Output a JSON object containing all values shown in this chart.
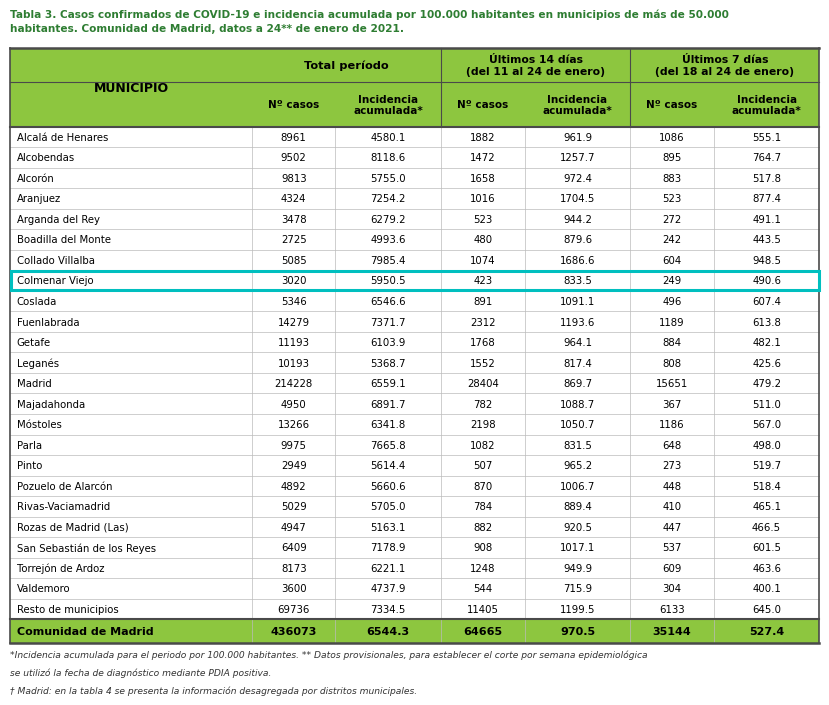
{
  "title_line1": "Tabla 3. Casos confirmados de COVID-19 e incidencia acumulada por 100.000 habitantes en municipios de más de 50.000",
  "title_line2": "habitantes. Comunidad de Madrid, datos a 24** de enero de 2021.",
  "highlight_row": "Colmenar Viejo",
  "highlight_color": "#00bfbf",
  "footer_line1": "*Incidencia acumulada para el periodo por 100.000 habitantes. ** Datos provisionales, para establecer el corte por semana epidemiológica",
  "footer_line2": "se utilizó la fecha de diagnóstico mediante PDIA positiva.",
  "footer_line3": "† Madrid: en la tabla 4 se presenta la información desagregada por distritos municipales.",
  "title_color": "#2e7d32",
  "header_color": "#8dc63f",
  "rows": [
    [
      "Alcalá de Henares",
      "8961",
      "4580.1",
      "1882",
      "961.9",
      "1086",
      "555.1"
    ],
    [
      "Alcobendas",
      "9502",
      "8118.6",
      "1472",
      "1257.7",
      "895",
      "764.7"
    ],
    [
      "Alcorón",
      "9813",
      "5755.0",
      "1658",
      "972.4",
      "883",
      "517.8"
    ],
    [
      "Aranjuez",
      "4324",
      "7254.2",
      "1016",
      "1704.5",
      "523",
      "877.4"
    ],
    [
      "Arganda del Rey",
      "3478",
      "6279.2",
      "523",
      "944.2",
      "272",
      "491.1"
    ],
    [
      "Boadilla del Monte",
      "2725",
      "4993.6",
      "480",
      "879.6",
      "242",
      "443.5"
    ],
    [
      "Collado Villalba",
      "5085",
      "7985.4",
      "1074",
      "1686.6",
      "604",
      "948.5"
    ],
    [
      "Colmenar Viejo",
      "3020",
      "5950.5",
      "423",
      "833.5",
      "249",
      "490.6"
    ],
    [
      "Coslada",
      "5346",
      "6546.6",
      "891",
      "1091.1",
      "496",
      "607.4"
    ],
    [
      "Fuenlabrada",
      "14279",
      "7371.7",
      "2312",
      "1193.6",
      "1189",
      "613.8"
    ],
    [
      "Getafe",
      "11193",
      "6103.9",
      "1768",
      "964.1",
      "884",
      "482.1"
    ],
    [
      "Leganés",
      "10193",
      "5368.7",
      "1552",
      "817.4",
      "808",
      "425.6"
    ],
    [
      "Madrid",
      "214228",
      "6559.1",
      "28404",
      "869.7",
      "15651",
      "479.2"
    ],
    [
      "Majadahonda",
      "4950",
      "6891.7",
      "782",
      "1088.7",
      "367",
      "511.0"
    ],
    [
      "Móstoles",
      "13266",
      "6341.8",
      "2198",
      "1050.7",
      "1186",
      "567.0"
    ],
    [
      "Parla",
      "9975",
      "7665.8",
      "1082",
      "831.5",
      "648",
      "498.0"
    ],
    [
      "Pinto",
      "2949",
      "5614.4",
      "507",
      "965.2",
      "273",
      "519.7"
    ],
    [
      "Pozuelo de Alarcón",
      "4892",
      "5660.6",
      "870",
      "1006.7",
      "448",
      "518.4"
    ],
    [
      "Rivas-Vaciamadrid",
      "5029",
      "5705.0",
      "784",
      "889.4",
      "410",
      "465.1"
    ],
    [
      "Rozas de Madrid (Las)",
      "4947",
      "5163.1",
      "882",
      "920.5",
      "447",
      "466.5"
    ],
    [
      "San Sebastián de los Reyes",
      "6409",
      "7178.9",
      "908",
      "1017.1",
      "537",
      "601.5"
    ],
    [
      "Torrejón de Ardoz",
      "8173",
      "6221.1",
      "1248",
      "949.9",
      "609",
      "463.6"
    ],
    [
      "Valdemoro",
      "3600",
      "4737.9",
      "544",
      "715.9",
      "304",
      "400.1"
    ],
    [
      "Resto de municipios",
      "69736",
      "7334.5",
      "11405",
      "1199.5",
      "6133",
      "645.0"
    ]
  ],
  "total_row": [
    "Comunidad de Madrid",
    "436073",
    "6544.3",
    "64665",
    "970.5",
    "35144",
    "527.4"
  ]
}
